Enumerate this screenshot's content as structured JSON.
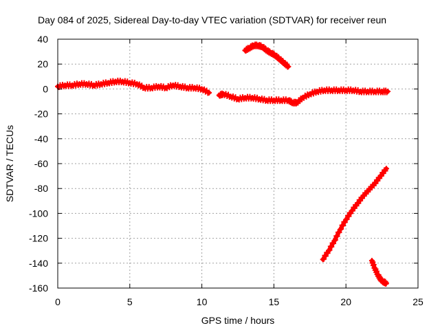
{
  "chart_data": {
    "type": "scatter",
    "title": "Day 084 of 2025, Sidereal Day-to-day VTEC variation (SDTVAR) for receiver reun",
    "xlabel": "GPS time / hours",
    "ylabel": "SDTVAR / TECUs",
    "xlim": [
      0,
      25
    ],
    "ylim": [
      -160,
      40
    ],
    "x_ticks": [
      0,
      5,
      10,
      15,
      20,
      25
    ],
    "y_ticks": [
      40,
      20,
      0,
      -20,
      -40,
      -60,
      -80,
      -100,
      -120,
      -140,
      -160
    ],
    "grid": true,
    "marker": "plus",
    "color": "#ff0000",
    "series": [
      {
        "x": [
          0.0,
          0.5,
          1.0,
          1.5,
          2.0,
          2.5,
          3.0,
          3.5,
          4.0,
          4.5,
          5.0,
          5.5,
          6.0,
          6.5,
          7.0,
          7.5,
          8.0,
          8.5,
          9.0,
          9.5,
          10.0,
          10.5
        ],
        "y": [
          2,
          3,
          3,
          4,
          4,
          3,
          4,
          5,
          6,
          6,
          5,
          4,
          1,
          1,
          2,
          1,
          3,
          2,
          1,
          1,
          0,
          -3
        ]
      },
      {
        "x": [
          11.2,
          11.5,
          12.0,
          12.5,
          13.0,
          13.5,
          14.0,
          14.5,
          15.0,
          15.5,
          16.0,
          16.3,
          16.6,
          17.0,
          17.5,
          18.0,
          18.5,
          19.0,
          19.5,
          20.0,
          20.5,
          21.0,
          21.5,
          22.0,
          22.5,
          22.9
        ],
        "y": [
          -5,
          -4,
          -6,
          -8,
          -7,
          -7,
          -8,
          -9,
          -9,
          -9,
          -9,
          -11,
          -11,
          -7,
          -4,
          -2,
          -1,
          -1,
          -1,
          -1,
          -1,
          -2,
          -2,
          -2,
          -2,
          -2
        ]
      },
      {
        "x": [
          13.0,
          13.3,
          13.6,
          13.9,
          14.2,
          14.5,
          14.8,
          15.1,
          15.4,
          15.7,
          16.0
        ],
        "y": [
          31,
          33,
          35,
          35,
          34,
          31,
          29,
          27,
          24,
          21,
          18
        ]
      },
      {
        "x": [
          18.4,
          18.8,
          19.2,
          19.6,
          20.0,
          20.4,
          20.8,
          21.2,
          21.6,
          22.0,
          22.4,
          22.8
        ],
        "y": [
          -137,
          -130,
          -122,
          -113,
          -105,
          -98,
          -92,
          -86,
          -81,
          -76,
          -70,
          -64
        ]
      },
      {
        "x": [
          21.8,
          22.0,
          22.2,
          22.4,
          22.6,
          22.8
        ],
        "y": [
          -138,
          -144,
          -149,
          -153,
          -155,
          -156
        ]
      }
    ]
  }
}
